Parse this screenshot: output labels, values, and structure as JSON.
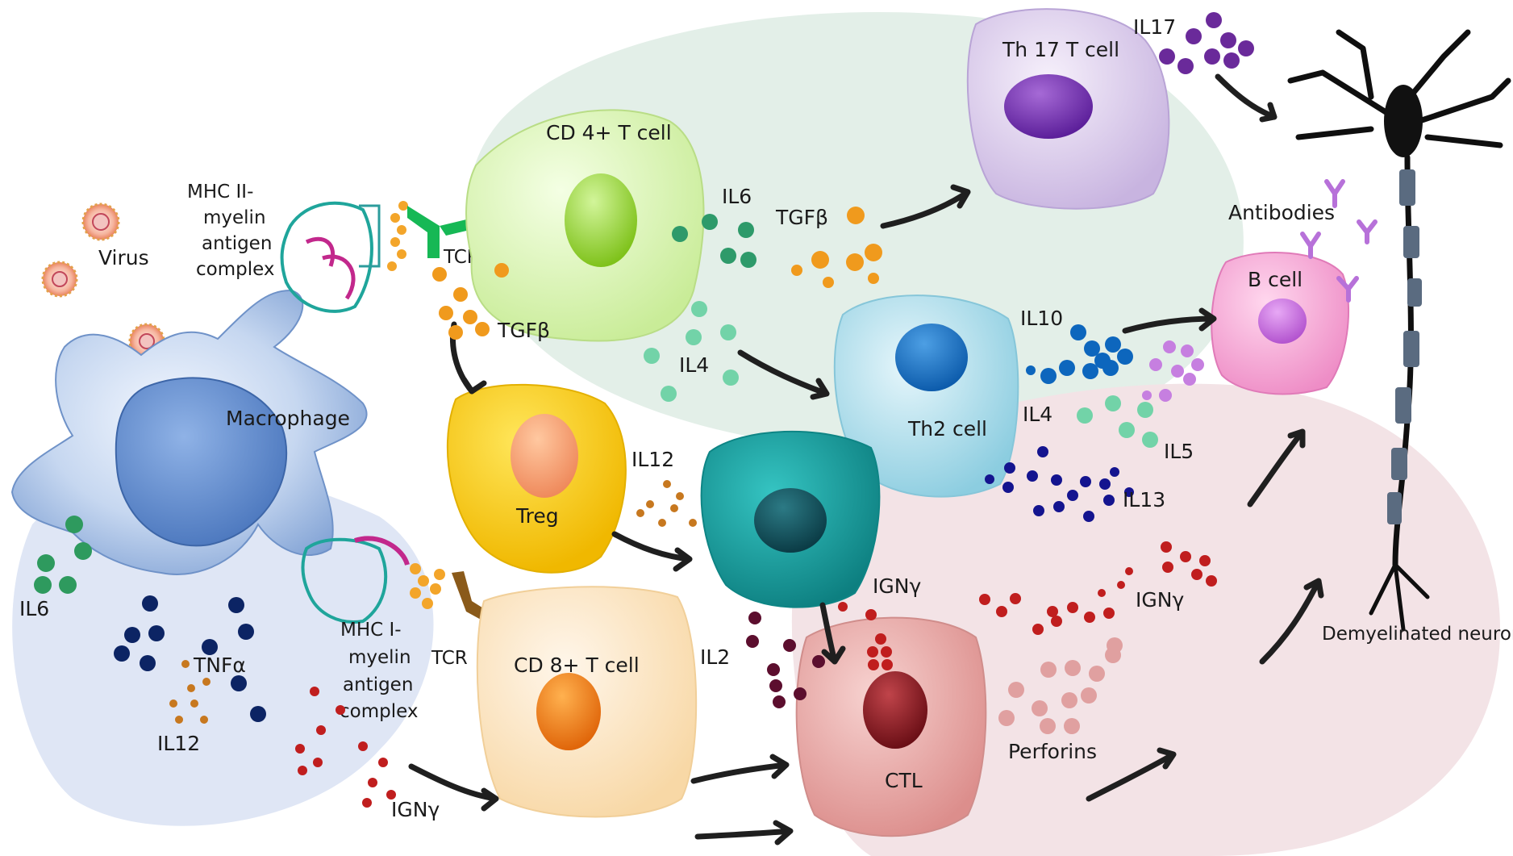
{
  "colors": {
    "bg_left": "#dfe6f5",
    "bg_top": "#e3efe8",
    "bg_right": "#f3e3e6",
    "macrophage": "#8fb0de",
    "cd4": "#d8f3b4",
    "cd8": "#fde6c6",
    "treg": "#f7c911",
    "th17": "#d9c9ec",
    "th2": "#a9dbe9",
    "teal_cell": "#1aa0a0",
    "bcell": "#f3a6d3",
    "ctl": "#e9a3a2",
    "arrow": "#1f1f1f"
  },
  "labels": {
    "virus": "Virus",
    "macrophage": "Macrophage",
    "mhc2": [
      "MHC II-",
      "myelin",
      "antigen",
      "complex"
    ],
    "mhc1": [
      "MHC I-",
      "myelin",
      "antigen",
      "complex"
    ],
    "tcr_top": "TCR",
    "tcr_bottom": "TCR",
    "cd4": "CD 4+ T cell",
    "cd8": "CD 8+ T cell",
    "treg": "Treg",
    "th17": "Th 17 T cell",
    "th2": "Th2 cell",
    "bcell": "B cell",
    "ctl": "CTL",
    "antibodies": "Antibodies",
    "neuron": "Demyelinated neuron",
    "perforins": "Perforins",
    "il6_left": "IL6",
    "il12_left": "IL12",
    "tnfa": "TNFα",
    "igny_left": "IGNγ",
    "tgfb_left": "TGFβ",
    "il6_top": "IL6",
    "tgfb_top": "TGFβ",
    "il4_mid": "IL4",
    "il12_treg": "IL12",
    "il2": "IL2",
    "igny_ctl": "IGNγ",
    "igny_right": "IGNγ",
    "il17": "IL17",
    "il10": "IL10",
    "il4_right": "IL4",
    "il5": "IL5",
    "il13": "IL13"
  }
}
